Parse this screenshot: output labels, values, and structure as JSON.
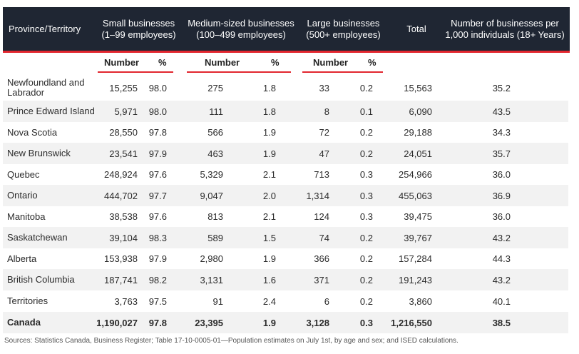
{
  "headers": {
    "province": "Province/Territory",
    "small_line1": "Small businesses",
    "small_line2": "(1–99 employees)",
    "medium_line1": "Medium-sized businesses",
    "medium_line2": "(100–499 employees)",
    "large_line1": "Large businesses",
    "large_line2": "(500+ employees)",
    "total": "Total",
    "per_line1": "Number of businesses per",
    "per_line2": "1,000 individuals (18+ Years)"
  },
  "subheaders": {
    "number": "Number",
    "percent": "%"
  },
  "rows": [
    {
      "name": "Newfoundland and Labrador",
      "small_n": "15,255",
      "small_p": "98.0",
      "med_n": "275",
      "med_p": "1.8",
      "large_n": "33",
      "large_p": "0.2",
      "total": "15,563",
      "per": "35.2"
    },
    {
      "name": "Prince Edward Island",
      "small_n": "5,971",
      "small_p": "98.0",
      "med_n": "111",
      "med_p": "1.8",
      "large_n": "8",
      "large_p": "0.1",
      "total": "6,090",
      "per": "43.5"
    },
    {
      "name": "Nova Scotia",
      "small_n": "28,550",
      "small_p": "97.8",
      "med_n": "566",
      "med_p": "1.9",
      "large_n": "72",
      "large_p": "0.2",
      "total": "29,188",
      "per": "34.3"
    },
    {
      "name": "New Brunswick",
      "small_n": "23,541",
      "small_p": "97.9",
      "med_n": "463",
      "med_p": "1.9",
      "large_n": "47",
      "large_p": "0.2",
      "total": "24,051",
      "per": "35.7"
    },
    {
      "name": "Quebec",
      "small_n": "248,924",
      "small_p": "97.6",
      "med_n": "5,329",
      "med_p": "2.1",
      "large_n": "713",
      "large_p": "0.3",
      "total": "254,966",
      "per": "36.0"
    },
    {
      "name": "Ontario",
      "small_n": "444,702",
      "small_p": "97.7",
      "med_n": "9,047",
      "med_p": "2.0",
      "large_n": "1,314",
      "large_p": "0.3",
      "total": "455,063",
      "per": "36.9"
    },
    {
      "name": "Manitoba",
      "small_n": "38,538",
      "small_p": "97.6",
      "med_n": "813",
      "med_p": "2.1",
      "large_n": "124",
      "large_p": "0.3",
      "total": "39,475",
      "per": "36.0"
    },
    {
      "name": "Saskatchewan",
      "small_n": "39,104",
      "small_p": "98.3",
      "med_n": "589",
      "med_p": "1.5",
      "large_n": "74",
      "large_p": "0.2",
      "total": "39,767",
      "per": "43.2"
    },
    {
      "name": "Alberta",
      "small_n": "153,938",
      "small_p": "97.9",
      "med_n": "2,980",
      "med_p": "1.9",
      "large_n": "366",
      "large_p": "0.2",
      "total": "157,284",
      "per": "44.3"
    },
    {
      "name": "British Columbia",
      "small_n": "187,741",
      "small_p": "98.2",
      "med_n": "3,131",
      "med_p": "1.6",
      "large_n": "371",
      "large_p": "0.2",
      "total": "191,243",
      "per": "43.2"
    },
    {
      "name": "Territories",
      "small_n": "3,763",
      "small_p": "97.5",
      "med_n": "91",
      "med_p": "2.4",
      "large_n": "6",
      "large_p": "0.2",
      "total": "3,860",
      "per": "40.1"
    },
    {
      "name": "Canada",
      "small_n": "1,190,027",
      "small_p": "97.8",
      "med_n": "23,395",
      "med_p": "1.9",
      "large_n": "3,128",
      "large_p": "0.3",
      "total": "1,216,550",
      "per": "38.5"
    }
  ],
  "footnote": "Sources: Statistics Canada, Business Register; Table 17-10-0005-01—Population estimates on July 1st, by age and sex; and ISED calculations."
}
